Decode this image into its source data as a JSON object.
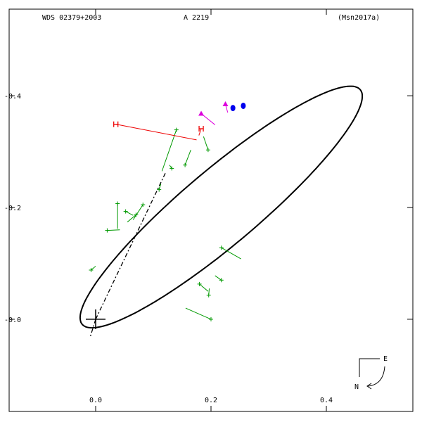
{
  "chart_data": {
    "type": "scatter",
    "header": {
      "object": "WDS 02379+2003",
      "discoverer": "A  2219",
      "reference": "(Msn2017a)"
    },
    "x_tick_labels": [
      "0.0",
      "0.2",
      "0.4"
    ],
    "y_tick_labels": [
      "0.4",
      "0.2",
      "0.0"
    ],
    "xlim": [
      -0.15,
      0.55
    ],
    "ylim": [
      -0.165,
      0.555
    ],
    "x_ticks": [
      0.0,
      0.2,
      0.4
    ],
    "y_ticks": [
      0.4,
      0.2,
      0.0
    ],
    "grid": false,
    "orbit": {
      "color": "#000000",
      "center": [
        0.2177,
        0.2009
      ],
      "semi_axes": [
        0.3197,
        0.0663
      ],
      "rotation_deg": 41.15
    },
    "primary": {
      "x": 0.0,
      "y": 0.0
    },
    "line_of_nodes_end": {
      "x": 0.122,
      "y": 0.264
    },
    "series": [
      {
        "marker": "plus",
        "color": "#009900",
        "points": [
          {
            "x": 0.14,
            "y": 0.339,
            "ox": 0.115,
            "oy": 0.265
          },
          {
            "x": 0.195,
            "y": 0.303,
            "ox": 0.187,
            "oy": 0.327
          },
          {
            "x": 0.155,
            "y": 0.276,
            "ox": 0.165,
            "oy": 0.303
          },
          {
            "x": 0.132,
            "y": 0.27,
            "ox": 0.128,
            "oy": 0.276
          },
          {
            "x": 0.11,
            "y": 0.232,
            "ox": 0.113,
            "oy": 0.242
          },
          {
            "x": 0.038,
            "y": 0.207,
            "ox": 0.038,
            "oy": 0.162
          },
          {
            "x": 0.052,
            "y": 0.193,
            "ox": 0.065,
            "oy": 0.186
          },
          {
            "x": 0.082,
            "y": 0.205,
            "ox": 0.065,
            "oy": 0.178
          },
          {
            "x": 0.07,
            "y": 0.187,
            "ox": 0.055,
            "oy": 0.174
          },
          {
            "x": 0.02,
            "y": 0.159,
            "ox": 0.042,
            "oy": 0.16
          },
          {
            "x": -0.008,
            "y": 0.088,
            "ox": 0.0,
            "oy": 0.095
          },
          {
            "x": 0.218,
            "y": 0.128,
            "ox": 0.252,
            "oy": 0.108
          },
          {
            "x": 0.218,
            "y": 0.07,
            "ox": 0.207,
            "oy": 0.078
          },
          {
            "x": 0.18,
            "y": 0.063,
            "ox": 0.195,
            "oy": 0.05
          },
          {
            "x": 0.196,
            "y": 0.043,
            "ox": 0.197,
            "oy": 0.055
          },
          {
            "x": 0.2,
            "y": 0.0,
            "ox": 0.156,
            "oy": 0.02
          }
        ]
      },
      {
        "marker": "triangle",
        "color": "#dd00dd",
        "points": [
          {
            "x": 0.183,
            "y": 0.368,
            "ox": 0.207,
            "oy": 0.348
          },
          {
            "x": 0.225,
            "y": 0.385,
            "ox": 0.229,
            "oy": 0.37
          }
        ]
      },
      {
        "marker": "H",
        "color": "#ee0000",
        "points": [
          {
            "x": 0.035,
            "y": 0.349,
            "ox": 0.175,
            "oy": 0.321
          },
          {
            "x": 0.183,
            "y": 0.341,
            "ox": 0.179,
            "oy": 0.329
          }
        ]
      },
      {
        "marker": "dot",
        "color": "#0000ee",
        "points": [
          {
            "x": 0.238,
            "y": 0.378,
            "ox": 0.236,
            "oy": 0.374
          },
          {
            "x": 0.256,
            "y": 0.382,
            "ox": 0.254,
            "oy": 0.379
          }
        ]
      }
    ],
    "compass": {
      "east": "E",
      "north": "N"
    }
  }
}
